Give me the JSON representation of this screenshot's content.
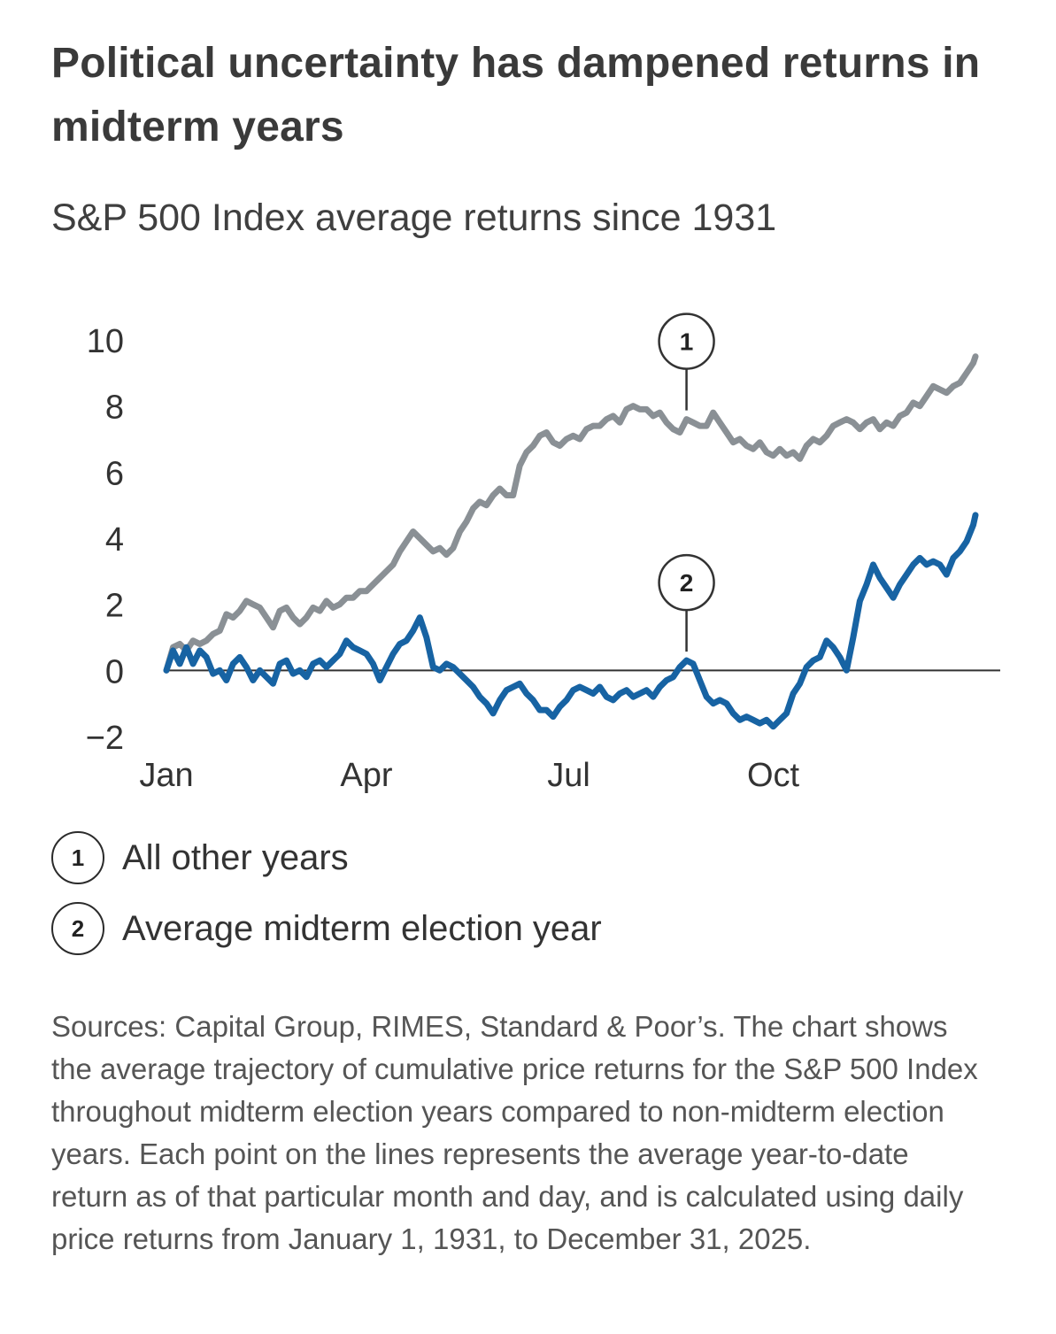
{
  "header": {
    "title": "Political uncertainty has dampened returns in midterm years",
    "subtitle": "S&P 500 Index average returns since 1931"
  },
  "legend": {
    "items": [
      {
        "badge": "1",
        "label": "All other years"
      },
      {
        "badge": "2",
        "label": "Average midterm election year"
      }
    ]
  },
  "footer": {
    "notes": "Sources: Capital Group, RIMES, Standard & Poor’s. The chart shows the average trajectory of cumulative price returns for the S&P 500 Index throughout midterm election years compared to non-midterm election years. Each point on the lines represents the average year-to-date return as of that particular month and day, and is calculated using daily price returns from January 1, 1931, to December 31, 2025."
  },
  "chart_data": {
    "type": "line",
    "title": "S&P 500 Index average returns since 1931",
    "xlabel": "",
    "ylabel": "",
    "xlim": [
      1,
      365
    ],
    "ylim": [
      -2,
      10
    ],
    "x_unit": "day of year",
    "grid": false,
    "zero_line": true,
    "x_ticks": [
      {
        "label": "Jan",
        "day": 1
      },
      {
        "label": "Apr",
        "day": 91
      },
      {
        "label": "Jul",
        "day": 182
      },
      {
        "label": "Oct",
        "day": 274
      }
    ],
    "y_ticks": [
      {
        "label": "10",
        "value": 10
      },
      {
        "label": "8",
        "value": 8
      },
      {
        "label": "6",
        "value": 6
      },
      {
        "label": "4",
        "value": 4
      },
      {
        "label": "2",
        "value": 2
      },
      {
        "label": "0",
        "value": 0
      },
      {
        "label": "−2",
        "value": -2
      }
    ],
    "series": [
      {
        "name": "All other years",
        "badge": "1",
        "color": "#8a9095",
        "callout_day": 235,
        "points": [
          [
            1,
            0.0
          ],
          [
            4,
            0.7
          ],
          [
            7,
            0.8
          ],
          [
            10,
            0.6
          ],
          [
            13,
            0.9
          ],
          [
            16,
            0.8
          ],
          [
            19,
            0.9
          ],
          [
            22,
            1.1
          ],
          [
            25,
            1.2
          ],
          [
            28,
            1.7
          ],
          [
            31,
            1.6
          ],
          [
            34,
            1.8
          ],
          [
            37,
            2.1
          ],
          [
            40,
            2.0
          ],
          [
            43,
            1.9
          ],
          [
            46,
            1.6
          ],
          [
            49,
            1.3
          ],
          [
            52,
            1.8
          ],
          [
            55,
            1.9
          ],
          [
            58,
            1.6
          ],
          [
            61,
            1.4
          ],
          [
            64,
            1.6
          ],
          [
            67,
            1.9
          ],
          [
            70,
            1.8
          ],
          [
            73,
            2.1
          ],
          [
            76,
            1.9
          ],
          [
            79,
            2.0
          ],
          [
            82,
            2.2
          ],
          [
            85,
            2.2
          ],
          [
            88,
            2.4
          ],
          [
            91,
            2.4
          ],
          [
            94,
            2.6
          ],
          [
            97,
            2.8
          ],
          [
            100,
            3.0
          ],
          [
            103,
            3.2
          ],
          [
            106,
            3.6
          ],
          [
            109,
            3.9
          ],
          [
            112,
            4.2
          ],
          [
            115,
            4.0
          ],
          [
            118,
            3.8
          ],
          [
            121,
            3.6
          ],
          [
            124,
            3.7
          ],
          [
            127,
            3.5
          ],
          [
            130,
            3.7
          ],
          [
            133,
            4.2
          ],
          [
            136,
            4.5
          ],
          [
            139,
            4.9
          ],
          [
            142,
            5.1
          ],
          [
            145,
            5.0
          ],
          [
            148,
            5.3
          ],
          [
            151,
            5.5
          ],
          [
            154,
            5.3
          ],
          [
            157,
            5.3
          ],
          [
            160,
            6.2
          ],
          [
            163,
            6.6
          ],
          [
            166,
            6.8
          ],
          [
            169,
            7.1
          ],
          [
            172,
            7.2
          ],
          [
            175,
            6.9
          ],
          [
            178,
            6.8
          ],
          [
            181,
            7.0
          ],
          [
            184,
            7.1
          ],
          [
            187,
            7.0
          ],
          [
            190,
            7.3
          ],
          [
            193,
            7.4
          ],
          [
            196,
            7.4
          ],
          [
            199,
            7.6
          ],
          [
            202,
            7.7
          ],
          [
            205,
            7.5
          ],
          [
            208,
            7.9
          ],
          [
            211,
            8.0
          ],
          [
            214,
            7.9
          ],
          [
            217,
            7.9
          ],
          [
            220,
            7.7
          ],
          [
            223,
            7.8
          ],
          [
            226,
            7.5
          ],
          [
            229,
            7.3
          ],
          [
            232,
            7.2
          ],
          [
            235,
            7.6
          ],
          [
            238,
            7.5
          ],
          [
            241,
            7.4
          ],
          [
            244,
            7.4
          ],
          [
            247,
            7.8
          ],
          [
            250,
            7.5
          ],
          [
            253,
            7.2
          ],
          [
            256,
            6.9
          ],
          [
            259,
            7.0
          ],
          [
            262,
            6.8
          ],
          [
            265,
            6.7
          ],
          [
            268,
            6.9
          ],
          [
            271,
            6.6
          ],
          [
            274,
            6.5
          ],
          [
            277,
            6.7
          ],
          [
            280,
            6.5
          ],
          [
            283,
            6.6
          ],
          [
            286,
            6.4
          ],
          [
            289,
            6.8
          ],
          [
            292,
            7.0
          ],
          [
            295,
            6.9
          ],
          [
            298,
            7.1
          ],
          [
            301,
            7.4
          ],
          [
            304,
            7.5
          ],
          [
            307,
            7.6
          ],
          [
            310,
            7.5
          ],
          [
            313,
            7.3
          ],
          [
            316,
            7.5
          ],
          [
            319,
            7.6
          ],
          [
            322,
            7.3
          ],
          [
            325,
            7.5
          ],
          [
            328,
            7.4
          ],
          [
            331,
            7.7
          ],
          [
            334,
            7.8
          ],
          [
            337,
            8.1
          ],
          [
            340,
            8.0
          ],
          [
            343,
            8.3
          ],
          [
            346,
            8.6
          ],
          [
            349,
            8.5
          ],
          [
            352,
            8.4
          ],
          [
            355,
            8.6
          ],
          [
            358,
            8.7
          ],
          [
            361,
            9.0
          ],
          [
            364,
            9.3
          ],
          [
            365,
            9.5
          ]
        ]
      },
      {
        "name": "Average midterm election year",
        "badge": "2",
        "color": "#1763a3",
        "callout_day": 235,
        "points": [
          [
            1,
            0.0
          ],
          [
            4,
            0.6
          ],
          [
            7,
            0.2
          ],
          [
            10,
            0.7
          ],
          [
            13,
            0.2
          ],
          [
            16,
            0.6
          ],
          [
            19,
            0.4
          ],
          [
            22,
            -0.1
          ],
          [
            25,
            0.0
          ],
          [
            28,
            -0.3
          ],
          [
            31,
            0.2
          ],
          [
            34,
            0.4
          ],
          [
            37,
            0.1
          ],
          [
            40,
            -0.3
          ],
          [
            43,
            0.0
          ],
          [
            46,
            -0.2
          ],
          [
            49,
            -0.4
          ],
          [
            52,
            0.2
          ],
          [
            55,
            0.3
          ],
          [
            58,
            -0.1
          ],
          [
            61,
            0.0
          ],
          [
            64,
            -0.2
          ],
          [
            67,
            0.2
          ],
          [
            70,
            0.3
          ],
          [
            73,
            0.1
          ],
          [
            76,
            0.3
          ],
          [
            79,
            0.5
          ],
          [
            82,
            0.9
          ],
          [
            85,
            0.7
          ],
          [
            88,
            0.6
          ],
          [
            91,
            0.5
          ],
          [
            94,
            0.2
          ],
          [
            97,
            -0.3
          ],
          [
            100,
            0.1
          ],
          [
            103,
            0.5
          ],
          [
            106,
            0.8
          ],
          [
            109,
            0.9
          ],
          [
            112,
            1.2
          ],
          [
            115,
            1.6
          ],
          [
            118,
            1.0
          ],
          [
            121,
            0.1
          ],
          [
            124,
            0.0
          ],
          [
            127,
            0.2
          ],
          [
            130,
            0.1
          ],
          [
            133,
            -0.1
          ],
          [
            136,
            -0.3
          ],
          [
            139,
            -0.5
          ],
          [
            142,
            -0.8
          ],
          [
            145,
            -1.0
          ],
          [
            148,
            -1.3
          ],
          [
            151,
            -0.9
          ],
          [
            154,
            -0.6
          ],
          [
            157,
            -0.5
          ],
          [
            160,
            -0.4
          ],
          [
            163,
            -0.7
          ],
          [
            166,
            -0.9
          ],
          [
            169,
            -1.2
          ],
          [
            172,
            -1.2
          ],
          [
            175,
            -1.4
          ],
          [
            178,
            -1.1
          ],
          [
            181,
            -0.9
          ],
          [
            184,
            -0.6
          ],
          [
            187,
            -0.5
          ],
          [
            190,
            -0.6
          ],
          [
            193,
            -0.7
          ],
          [
            196,
            -0.5
          ],
          [
            199,
            -0.8
          ],
          [
            202,
            -0.9
          ],
          [
            205,
            -0.7
          ],
          [
            208,
            -0.6
          ],
          [
            211,
            -0.8
          ],
          [
            214,
            -0.7
          ],
          [
            217,
            -0.6
          ],
          [
            220,
            -0.8
          ],
          [
            223,
            -0.5
          ],
          [
            226,
            -0.3
          ],
          [
            229,
            -0.2
          ],
          [
            232,
            0.1
          ],
          [
            235,
            0.3
          ],
          [
            238,
            0.2
          ],
          [
            241,
            -0.3
          ],
          [
            244,
            -0.8
          ],
          [
            247,
            -1.0
          ],
          [
            250,
            -0.9
          ],
          [
            253,
            -1.0
          ],
          [
            256,
            -1.3
          ],
          [
            259,
            -1.5
          ],
          [
            262,
            -1.4
          ],
          [
            265,
            -1.5
          ],
          [
            268,
            -1.6
          ],
          [
            271,
            -1.5
          ],
          [
            274,
            -1.7
          ],
          [
            277,
            -1.5
          ],
          [
            280,
            -1.3
          ],
          [
            283,
            -0.7
          ],
          [
            286,
            -0.4
          ],
          [
            289,
            0.1
          ],
          [
            292,
            0.3
          ],
          [
            295,
            0.4
          ],
          [
            298,
            0.9
          ],
          [
            301,
            0.7
          ],
          [
            304,
            0.4
          ],
          [
            307,
            0.0
          ],
          [
            310,
            1.0
          ],
          [
            313,
            2.1
          ],
          [
            316,
            2.6
          ],
          [
            319,
            3.2
          ],
          [
            322,
            2.8
          ],
          [
            325,
            2.5
          ],
          [
            328,
            2.2
          ],
          [
            331,
            2.6
          ],
          [
            334,
            2.9
          ],
          [
            337,
            3.2
          ],
          [
            340,
            3.4
          ],
          [
            343,
            3.2
          ],
          [
            346,
            3.3
          ],
          [
            349,
            3.2
          ],
          [
            352,
            2.9
          ],
          [
            355,
            3.4
          ],
          [
            358,
            3.6
          ],
          [
            361,
            3.9
          ],
          [
            364,
            4.4
          ],
          [
            365,
            4.7
          ]
        ]
      }
    ]
  }
}
